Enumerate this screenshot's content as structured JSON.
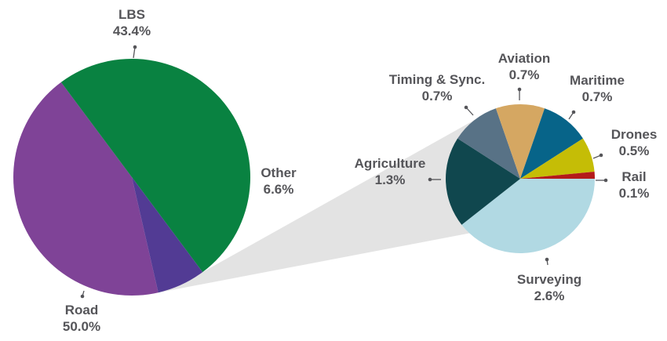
{
  "chart_data": [
    {
      "type": "pie",
      "slices": [
        {
          "label": "LBS",
          "value": 43.4,
          "value_label": "43.4%",
          "color": "#7f4397"
        },
        {
          "label": "Road",
          "value": 50.0,
          "value_label": "50.0%",
          "color": "#098241"
        },
        {
          "label": "Other",
          "value": 6.6,
          "value_label": "6.6%",
          "color": "#523b94"
        }
      ]
    },
    {
      "type": "pie",
      "slices": [
        {
          "label": "Surveying",
          "value": 2.6,
          "value_label": "2.6%",
          "color": "#b1d9e3"
        },
        {
          "label": "Agriculture",
          "value": 1.3,
          "value_label": "1.3%",
          "color": "#10474e"
        },
        {
          "label": "Timing & Sync.",
          "value": 0.7,
          "value_label": "0.7%",
          "color": "#587286"
        },
        {
          "label": "Aviation",
          "value": 0.7,
          "value_label": "0.7%",
          "color": "#d5a762"
        },
        {
          "label": "Maritime",
          "value": 0.7,
          "value_label": "0.7%",
          "color": "#076489"
        },
        {
          "label": "Drones",
          "value": 0.5,
          "value_label": "0.5%",
          "color": "#c5bd06"
        },
        {
          "label": "Rail",
          "value": 0.1,
          "value_label": "0.1%",
          "color": "#b41a1a"
        }
      ]
    }
  ],
  "colors": {
    "label_text": "#555559",
    "leader_line": "#555559",
    "connector_band": "#e3e3e3"
  }
}
